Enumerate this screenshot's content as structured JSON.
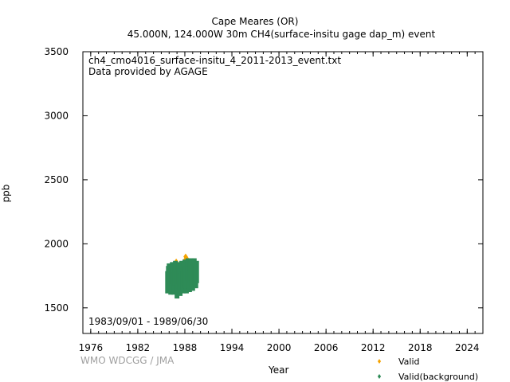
{
  "header": {
    "title": "Cape Meares (OR)",
    "subtitle": "45.000N, 124.000W 30m    CH4(surface-insitu gage dap_m) event"
  },
  "annotations": {
    "file_name": "ch4_cmo4016_surface-insitu_4_2011-2013_event.txt",
    "provider": "Data provided by AGAGE",
    "date_range": "1983/09/01 - 1989/06/30",
    "credit": "WMO WDCGG / JMA"
  },
  "colors": {
    "valid": "#f5a300",
    "background": "#2e8b57",
    "credit_text": "#a0a0a0"
  },
  "chart_data": {
    "type": "scatter",
    "xlabel": "Year",
    "ylabel": "ppb",
    "xlim": [
      1975,
      2026
    ],
    "ylim": [
      1300,
      3500
    ],
    "x_ticks": [
      "1976",
      "1982",
      "1988",
      "1994",
      "2000",
      "2006",
      "2012",
      "2018",
      "2024"
    ],
    "y_ticks": [
      "1500",
      "2000",
      "2500",
      "3000",
      "3500"
    ],
    "grid": false,
    "legend_position": "bottom-right",
    "series": [
      {
        "name": "Valid",
        "color": "#f5a300",
        "points": [
          [
            1986.0,
            1790
          ],
          [
            1986.3,
            1800
          ],
          [
            1986.7,
            1820
          ],
          [
            1986.9,
            1860
          ],
          [
            1987.2,
            1800
          ],
          [
            1987.5,
            1830
          ],
          [
            1987.8,
            1850
          ],
          [
            1988.0,
            1870
          ],
          [
            1988.1,
            1900
          ],
          [
            1988.3,
            1880
          ],
          [
            1988.6,
            1850
          ],
          [
            1988.9,
            1820
          ],
          [
            1989.1,
            1810
          ],
          [
            1989.3,
            1840
          ]
        ]
      },
      {
        "name": "Valid(background)",
        "color": "#2e8b57",
        "points": [
          [
            1985.8,
            1700
          ],
          [
            1985.9,
            1740
          ],
          [
            1986.0,
            1760
          ],
          [
            1986.1,
            1720
          ],
          [
            1986.2,
            1690
          ],
          [
            1986.3,
            1750
          ],
          [
            1986.4,
            1770
          ],
          [
            1986.5,
            1730
          ],
          [
            1986.6,
            1690
          ],
          [
            1986.7,
            1760
          ],
          [
            1986.8,
            1780
          ],
          [
            1986.9,
            1700
          ],
          [
            1987.0,
            1660
          ],
          [
            1987.1,
            1740
          ],
          [
            1987.2,
            1770
          ],
          [
            1987.3,
            1720
          ],
          [
            1987.4,
            1680
          ],
          [
            1987.5,
            1750
          ],
          [
            1987.6,
            1780
          ],
          [
            1987.7,
            1730
          ],
          [
            1987.8,
            1700
          ],
          [
            1987.9,
            1760
          ],
          [
            1988.0,
            1790
          ],
          [
            1988.1,
            1740
          ],
          [
            1988.2,
            1700
          ],
          [
            1988.3,
            1770
          ],
          [
            1988.4,
            1800
          ],
          [
            1988.5,
            1740
          ],
          [
            1988.6,
            1710
          ],
          [
            1988.7,
            1780
          ],
          [
            1988.8,
            1800
          ],
          [
            1988.9,
            1750
          ],
          [
            1989.0,
            1720
          ],
          [
            1989.1,
            1770
          ],
          [
            1989.2,
            1800
          ],
          [
            1989.3,
            1760
          ],
          [
            1989.4,
            1740
          ],
          [
            1989.5,
            1780
          ]
        ]
      }
    ]
  }
}
